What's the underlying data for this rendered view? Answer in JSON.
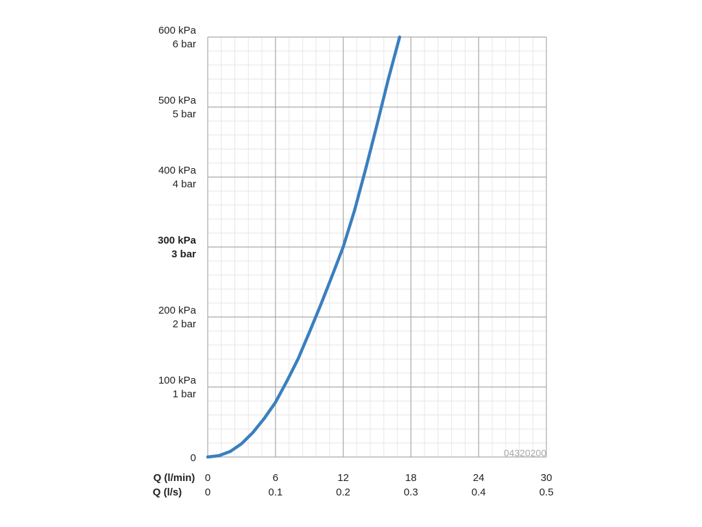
{
  "chart_data": {
    "type": "line",
    "y_axis": {
      "range": [
        0,
        600
      ],
      "unit_primary": "kPa",
      "unit_secondary": "bar",
      "ticks": [
        {
          "value": 0,
          "primary": "0",
          "secondary": "",
          "bold": false
        },
        {
          "value": 100,
          "primary": "100 kPa",
          "secondary": "1 bar",
          "bold": false
        },
        {
          "value": 200,
          "primary": "200 kPa",
          "secondary": "2 bar",
          "bold": false
        },
        {
          "value": 300,
          "primary": "300 kPa",
          "secondary": "3 bar",
          "bold": true
        },
        {
          "value": 400,
          "primary": "400 kPa",
          "secondary": "4 bar",
          "bold": false
        },
        {
          "value": 500,
          "primary": "500 kPa",
          "secondary": "5 bar",
          "bold": false
        },
        {
          "value": 600,
          "primary": "600 kPa",
          "secondary": "6 bar",
          "bold": false
        }
      ]
    },
    "x_axis": {
      "range": [
        0,
        30
      ],
      "label_primary": "Q (l/min)",
      "label_secondary": "Q (l/s)",
      "ticks": [
        {
          "value": 0,
          "primary": "0",
          "secondary": "0"
        },
        {
          "value": 6,
          "primary": "6",
          "secondary": "0.1"
        },
        {
          "value": 12,
          "primary": "12",
          "secondary": "0.2"
        },
        {
          "value": 18,
          "primary": "18",
          "secondary": "0.3"
        },
        {
          "value": 24,
          "primary": "24",
          "secondary": "0.4"
        },
        {
          "value": 30,
          "primary": "30",
          "secondary": "0.5"
        }
      ]
    },
    "grid": true,
    "minor_grid": true,
    "series": [
      {
        "color": "#3a7fbf",
        "x": [
          0,
          1,
          2,
          3,
          4,
          5,
          6,
          7,
          8,
          9,
          10,
          11,
          12,
          13,
          14,
          15,
          16,
          17
        ],
        "y": [
          0,
          2,
          8,
          19,
          35,
          55,
          78,
          108,
          140,
          178,
          217,
          258,
          300,
          352,
          412,
          475,
          540,
          600
        ]
      }
    ],
    "annotation": "04320200"
  }
}
